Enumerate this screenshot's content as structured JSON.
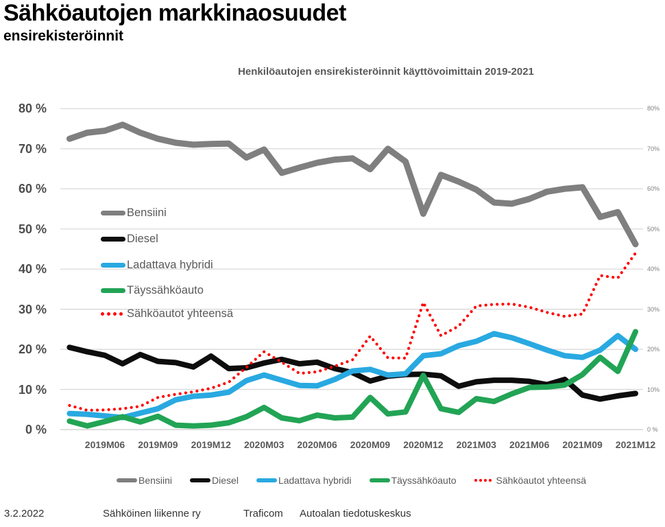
{
  "page": {
    "title": "Sähköautojen markkinaosuudet",
    "subtitle": "ensirekisteröinnit",
    "footer": {
      "date": "3.2.2022",
      "sources": [
        "Sähköinen liikenne ry",
        "Traficom",
        "Autoalan tiedotuskeskus"
      ]
    }
  },
  "chart_data": {
    "type": "line",
    "title": "Henkilöautojen ensirekisteröinnit käyttövoimittain 2019-2021",
    "x": [
      "2019M04",
      "2019M05",
      "2019M06",
      "2019M07",
      "2019M08",
      "2019M09",
      "2019M10",
      "2019M11",
      "2019M12",
      "2020M01",
      "2020M02",
      "2020M03",
      "2020M04",
      "2020M05",
      "2020M06",
      "2020M07",
      "2020M08",
      "2020M09",
      "2020M10",
      "2020M11",
      "2020M12",
      "2021M01",
      "2021M02",
      "2021M03",
      "2021M04",
      "2021M05",
      "2021M06",
      "2021M07",
      "2021M08",
      "2021M09",
      "2021M10",
      "2021M11",
      "2021M12"
    ],
    "x_tick_labels": [
      "2019M06",
      "2019M09",
      "2019M12",
      "2020M03",
      "2020M06",
      "2020M09",
      "2020M12",
      "2021M03",
      "2021M06",
      "2021M09",
      "2021M12"
    ],
    "ylim": [
      0,
      80
    ],
    "y_ticks": [
      0,
      10,
      20,
      30,
      40,
      50,
      60,
      70,
      80
    ],
    "y_tick_labels_left": [
      "0 %",
      "10 %",
      "20 %",
      "30 %",
      "40 %",
      "50 %",
      "60 %",
      "70 %",
      "80 %"
    ],
    "y_tick_labels_right": [
      "0 %",
      "10%",
      "20%",
      "30%",
      "40%",
      "50%",
      "60%",
      "70%",
      "80%"
    ],
    "grid": true,
    "legend_positions": [
      "inside-upper-left",
      "bottom"
    ],
    "series": [
      {
        "name": "Bensiini",
        "color": "#7f7f7f",
        "line_style": "solid",
        "values": [
          72.5,
          74,
          74.5,
          76,
          74,
          72.5,
          71.5,
          71,
          71.2,
          71.3,
          67.8,
          69.8,
          64,
          65.3,
          66.5,
          67.3,
          67.6,
          64.9,
          70,
          66.8,
          53.8,
          63.5,
          61.8,
          59.8,
          56.6,
          56.3,
          57.5,
          59.3,
          60,
          60.4,
          53,
          54.2,
          46.2
        ]
      },
      {
        "name": "Diesel",
        "color": "#0d0d0d",
        "line_style": "solid",
        "values": [
          20.5,
          19.4,
          18.5,
          16.4,
          18.7,
          17,
          16.7,
          15.6,
          18.3,
          15.2,
          15.4,
          16.6,
          17.5,
          16.4,
          16.8,
          15.2,
          14.2,
          12.1,
          13.3,
          13.7,
          13.8,
          13.4,
          10.8,
          11.9,
          12.3,
          12.3,
          12,
          11.2,
          12.5,
          8.6,
          7.6,
          8.4,
          9
        ]
      },
      {
        "name": "Ladattava hybridi",
        "color": "#29a9e1",
        "line_style": "solid",
        "values": [
          4,
          3.8,
          3.4,
          3,
          4.1,
          5.2,
          7.4,
          8.3,
          8.6,
          9.3,
          12.2,
          13.6,
          12.3,
          11,
          10.9,
          12.5,
          14.6,
          15,
          13.6,
          13.9,
          18.4,
          18.9,
          20.9,
          22,
          23.9,
          22.9,
          21.4,
          19.8,
          18.4,
          18,
          19.8,
          23.4,
          20
        ]
      },
      {
        "name": "Täyssähköauto",
        "color": "#22a455",
        "line_style": "solid",
        "values": [
          2.1,
          0.9,
          2,
          3.2,
          1.9,
          3.3,
          1.1,
          0.9,
          1.1,
          1.7,
          3.2,
          5.5,
          2.9,
          2.2,
          3.6,
          2.9,
          3.1,
          8,
          3.9,
          4.4,
          13.5,
          5.2,
          4.3,
          7.7,
          7,
          8.9,
          10.5,
          10.6,
          11.1,
          13.7,
          18,
          14.5,
          24.4
        ]
      },
      {
        "name": "Sähköautot yhteensä",
        "color": "#ff0000",
        "line_style": "dotted",
        "values": [
          6,
          4.8,
          4.9,
          5.2,
          5.8,
          8,
          8.8,
          9.4,
          10.3,
          11.8,
          15.5,
          19.4,
          16.8,
          14,
          14.4,
          15.8,
          17.4,
          23.3,
          17.9,
          17.8,
          31.7,
          23.4,
          25.8,
          30.8,
          31.2,
          31.3,
          30.5,
          29.2,
          28.2,
          28.8,
          38.4,
          37.8,
          44
        ]
      }
    ]
  }
}
